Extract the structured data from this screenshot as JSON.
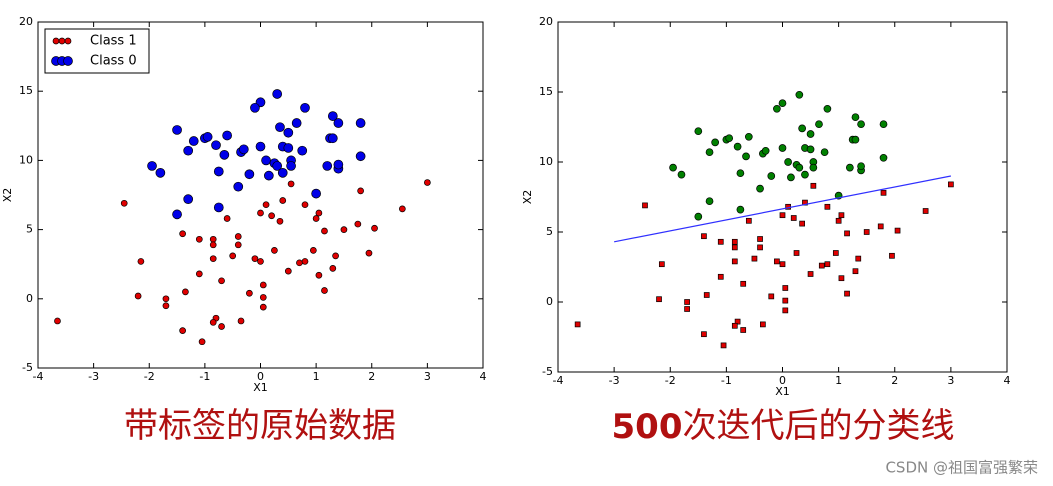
{
  "charts": [
    {
      "type": "scatter",
      "xlabel": "X1",
      "ylabel": "X2",
      "xlim": [
        -4,
        4
      ],
      "ylim": [
        -5,
        20
      ],
      "xticks": [
        -4,
        -3,
        -2,
        -1,
        0,
        1,
        2,
        3,
        4
      ],
      "yticks": [
        -5,
        0,
        5,
        10,
        15,
        20
      ],
      "legend": "upper left",
      "series": [
        {
          "name": "Class 1",
          "color": "#e00000",
          "marker": "circle",
          "x": [
            -3.65,
            -2.45,
            -2.15,
            -2.2,
            -1.7,
            -1.7,
            -1.4,
            -1.1,
            -1.35,
            -1.4,
            -1.1,
            -1.05,
            -0.85,
            -0.85,
            -0.85,
            -0.8,
            -0.85,
            -0.7,
            -0.7,
            -0.6,
            -0.4,
            -0.4,
            -0.5,
            -0.35,
            -0.2,
            -0.1,
            0,
            0,
            0.1,
            0.05,
            0.05,
            0.05,
            0.2,
            0.25,
            0.35,
            0.4,
            0.5,
            0.55,
            0.7,
            0.8,
            0.8,
            0.95,
            1.05,
            1.0,
            1.05,
            1.15,
            1.15,
            1.3,
            1.35,
            1.5,
            1.75,
            1.8,
            1.95,
            2.05,
            2.55,
            3.0
          ],
          "y": [
            -1.6,
            6.9,
            2.7,
            0.2,
            0.0,
            -0.5,
            4.7,
            4.3,
            0.5,
            -2.3,
            1.8,
            -3.1,
            4.3,
            3.9,
            2.9,
            -1.4,
            -1.7,
            1.3,
            -2.0,
            5.8,
            4.5,
            3.9,
            3.1,
            -1.6,
            0.4,
            2.9,
            2.7,
            6.2,
            6.8,
            1.0,
            0.1,
            -0.6,
            6.0,
            3.5,
            5.6,
            7.1,
            2.0,
            8.3,
            2.6,
            2.7,
            6.8,
            3.5,
            6.2,
            5.8,
            1.7,
            4.9,
            0.6,
            2.2,
            3.1,
            5.0,
            5.4,
            7.8,
            3.3,
            5.1,
            6.5,
            8.4
          ]
        },
        {
          "name": "Class 0",
          "color": "#0000e8",
          "marker": "circle",
          "x": [
            0.3,
            0,
            -0.1,
            0.8,
            1.3,
            1.4,
            -1.5,
            0.65,
            0.35,
            0.5,
            -0.6,
            1.8,
            -1.2,
            -1.0,
            -0.95,
            -0.8,
            -1.3,
            -0.35,
            -0.65,
            0,
            0.4,
            0.5,
            0.75,
            1.25,
            1.3,
            -0.3,
            -1.95,
            -1.8,
            -0.75,
            0.1,
            0.25,
            0.55,
            0.55,
            0.3,
            -0.2,
            0.15,
            0.4,
            1.2,
            1.4,
            1.4,
            1.8,
            -0.4,
            1.0,
            -0.75,
            -1.5,
            -1.3
          ],
          "y": [
            14.8,
            14.2,
            13.8,
            13.8,
            13.2,
            12.7,
            12.2,
            12.7,
            12.4,
            12.0,
            11.8,
            12.7,
            11.4,
            11.6,
            11.7,
            11.1,
            10.7,
            10.6,
            10.4,
            11.0,
            11.0,
            10.9,
            10.7,
            11.6,
            11.6,
            10.8,
            9.6,
            9.1,
            9.2,
            10.0,
            9.8,
            10.0,
            9.6,
            9.6,
            9.0,
            8.9,
            9.1,
            9.6,
            9.4,
            9.7,
            10.3,
            8.1,
            7.6,
            6.6,
            6.1,
            7.2
          ]
        }
      ],
      "caption": "带标签的原始数据"
    },
    {
      "type": "scatter",
      "xlabel": "X1",
      "ylabel": "X2",
      "xlim": [
        -4,
        4
      ],
      "ylim": [
        -5,
        20
      ],
      "xticks": [
        -4,
        -3,
        -2,
        -1,
        0,
        1,
        2,
        3,
        4
      ],
      "yticks": [
        -5,
        0,
        5,
        10,
        15,
        20
      ],
      "series": [
        {
          "color": "#e00000",
          "marker": "square",
          "x": [
            -3.65,
            -2.45,
            -2.15,
            -2.2,
            -1.7,
            -1.7,
            -1.4,
            -1.1,
            -1.35,
            -1.4,
            -1.1,
            -1.05,
            -0.85,
            -0.85,
            -0.85,
            -0.8,
            -0.85,
            -0.7,
            -0.7,
            -0.6,
            -0.4,
            -0.4,
            -0.5,
            -0.35,
            -0.2,
            -0.1,
            0,
            0,
            0.1,
            0.05,
            0.05,
            0.05,
            0.2,
            0.25,
            0.35,
            0.4,
            0.5,
            0.55,
            0.7,
            0.8,
            0.8,
            0.95,
            1.05,
            1.0,
            1.05,
            1.15,
            1.15,
            1.3,
            1.35,
            1.5,
            1.75,
            1.8,
            1.95,
            2.05,
            2.55,
            3.0
          ],
          "y": [
            -1.6,
            6.9,
            2.7,
            0.2,
            0.0,
            -0.5,
            4.7,
            4.3,
            0.5,
            -2.3,
            1.8,
            -3.1,
            4.3,
            3.9,
            2.9,
            -1.4,
            -1.7,
            1.3,
            -2.0,
            5.8,
            4.5,
            3.9,
            3.1,
            -1.6,
            0.4,
            2.9,
            2.7,
            6.2,
            6.8,
            1.0,
            0.1,
            -0.6,
            6.0,
            3.5,
            5.6,
            7.1,
            2.0,
            8.3,
            2.6,
            2.7,
            6.8,
            3.5,
            6.2,
            5.8,
            1.7,
            4.9,
            0.6,
            2.2,
            3.1,
            5.0,
            5.4,
            7.8,
            3.3,
            5.1,
            6.5,
            8.4
          ]
        },
        {
          "color": "#008000",
          "marker": "circle",
          "x": [
            0.3,
            0,
            -0.1,
            0.8,
            1.3,
            1.4,
            -1.5,
            0.65,
            0.35,
            0.5,
            -0.6,
            1.8,
            -1.2,
            -1.0,
            -0.95,
            -0.8,
            -1.3,
            -0.35,
            -0.65,
            0,
            0.4,
            0.5,
            0.75,
            1.25,
            1.3,
            -0.3,
            -1.95,
            -1.8,
            -0.75,
            0.1,
            0.25,
            0.55,
            0.55,
            0.3,
            -0.2,
            0.15,
            0.4,
            1.2,
            1.4,
            1.4,
            1.8,
            -0.4,
            1.0,
            -0.75,
            -1.5,
            -1.3
          ],
          "y": [
            14.8,
            14.2,
            13.8,
            13.8,
            13.2,
            12.7,
            12.2,
            12.7,
            12.4,
            12.0,
            11.8,
            12.7,
            11.4,
            11.6,
            11.7,
            11.1,
            10.7,
            10.6,
            10.4,
            11.0,
            11.0,
            10.9,
            10.7,
            11.6,
            11.6,
            10.8,
            9.6,
            9.1,
            9.2,
            10.0,
            9.8,
            10.0,
            9.6,
            9.6,
            9.0,
            8.9,
            9.1,
            9.6,
            9.4,
            9.7,
            10.3,
            8.1,
            7.6,
            6.6,
            6.1,
            7.2
          ]
        }
      ],
      "line": {
        "color": "#3030ff",
        "x": [
          -3,
          3
        ],
        "y": [
          4.3,
          9.0
        ]
      },
      "caption_bold": "500",
      "caption": "次迭代后的分类线"
    }
  ],
  "watermark": "CSDN @祖国富强繁荣"
}
